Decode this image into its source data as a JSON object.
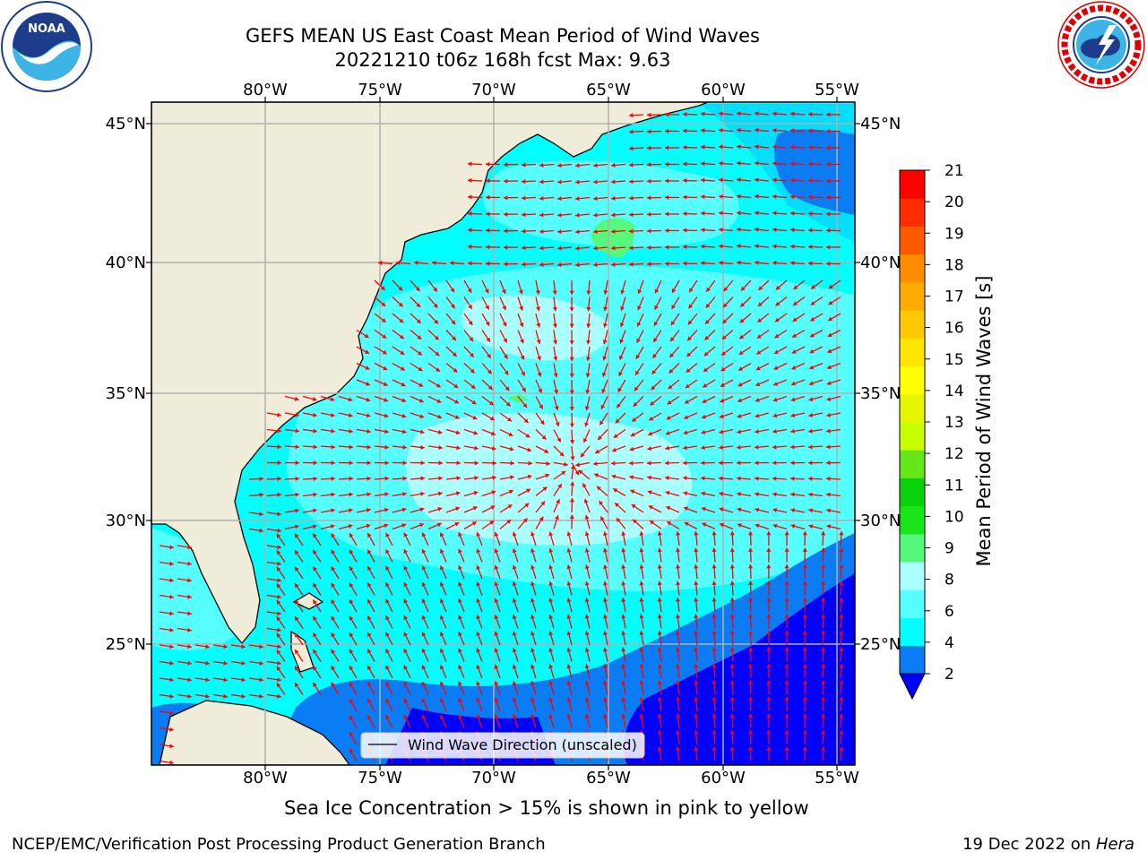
{
  "header": {
    "title_line1": "GEFS MEAN US East Coast Mean Period of Wind Waves",
    "title_line2": "20221210 t06z 168h fcst   Max: 9.63"
  },
  "logos": {
    "left": "noaa-logo",
    "right": "national-weather-service-logo"
  },
  "map": {
    "region": "US East Coast / Western North Atlantic",
    "lon_labels": [
      "80°W",
      "75°W",
      "70°W",
      "65°W",
      "60°W",
      "55°W"
    ],
    "lat_labels": [
      "45°N",
      "40°N",
      "35°N",
      "30°N",
      "25°N"
    ],
    "legend_label": "Wind Wave Direction (unscaled)",
    "vector_color": "#ff0000",
    "land_color": "#efedda",
    "grid": true,
    "note": "Sea Ice Concentration > 15% is shown in pink to yellow"
  },
  "colorbar": {
    "title": "Mean Period of Wind Waves [s]",
    "tick_labels": [
      "2",
      "4",
      "6",
      "8",
      "9",
      "10",
      "11",
      "12",
      "13",
      "14",
      "15",
      "16",
      "17",
      "18",
      "19",
      "20",
      "21"
    ],
    "colors": [
      "#0a7df5",
      "#00ffff",
      "#55ffff",
      "#aaffff",
      "#55fa7d",
      "#19e619",
      "#0ad20a",
      "#64e619",
      "#c8ff00",
      "#e6f500",
      "#ffff00",
      "#ffe600",
      "#ffc800",
      "#ffaa00",
      "#ff8c00",
      "#ff5a00",
      "#ff2d00",
      "#ff0000"
    ],
    "extend_color": "#0000ff"
  },
  "footer": {
    "left": "NCEP/EMC/Verification Post Processing Product Generation Branch",
    "date": "19 Dec 2022 on ",
    "host": "Hera"
  }
}
